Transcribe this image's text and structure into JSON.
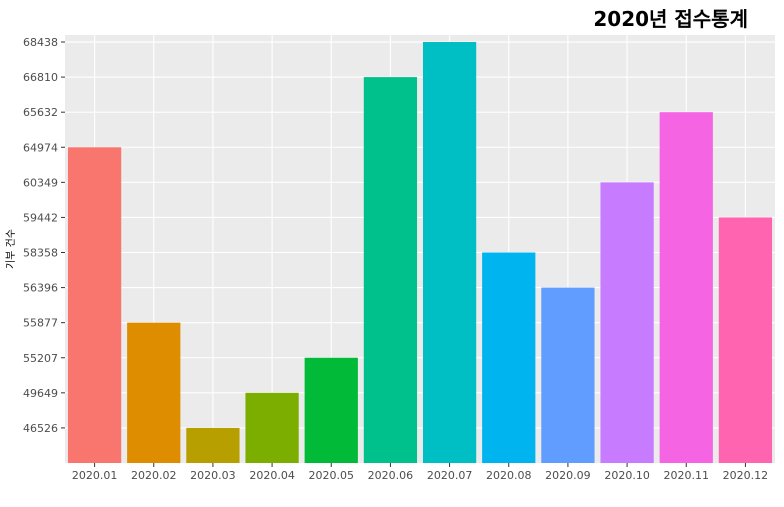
{
  "chart_data": {
    "type": "bar",
    "title": "2020년 접수통계",
    "xlabel": "",
    "ylabel": "기부 건수",
    "categories": [
      "2020.01",
      "2020.02",
      "2020.03",
      "2020.04",
      "2020.05",
      "2020.06",
      "2020.07",
      "2020.08",
      "2020.09",
      "2020.10",
      "2020.11",
      "2020.12"
    ],
    "values": [
      64974,
      55877,
      46526,
      49649,
      55207,
      66810,
      68438,
      58358,
      56396,
      60349,
      65632,
      59442
    ],
    "y_tick_labels": [
      "46526",
      "49649",
      "55207",
      "55877",
      "56396",
      "58358",
      "59442",
      "60349",
      "64974",
      "65632",
      "66810",
      "68438"
    ],
    "y_axis_scale": "discrete (each distinct value is an evenly spaced category level)",
    "grid": true,
    "legend": "none",
    "panel_background": "#ebebeb",
    "grid_color": "#ffffff",
    "bar_colors": [
      "#F8766D",
      "#DE8C00",
      "#B79F00",
      "#7CAE00",
      "#00BA38",
      "#00C08B",
      "#00BFC4",
      "#00B4F0",
      "#619CFF",
      "#C77CFF",
      "#F564E3",
      "#FF64B0"
    ]
  }
}
